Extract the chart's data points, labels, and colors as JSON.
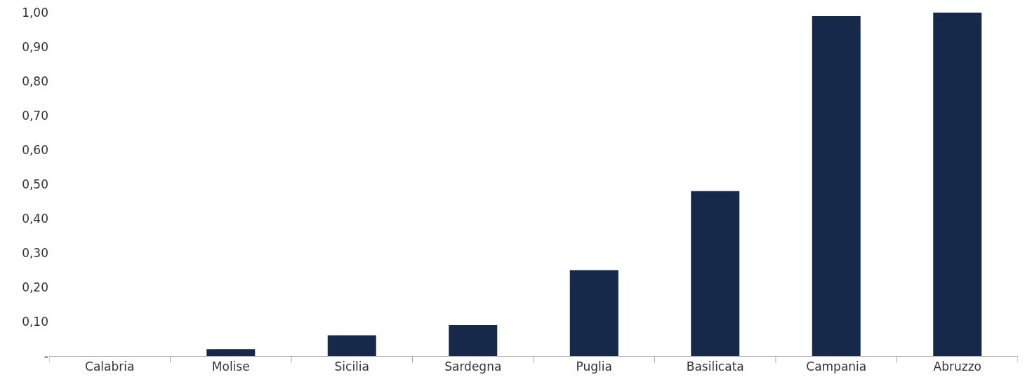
{
  "chart_data": {
    "type": "bar",
    "categories": [
      "Calabria",
      "Molise",
      "Sicilia",
      "Sardegna",
      "Puglia",
      "Basilicata",
      "Campania",
      "Abruzzo"
    ],
    "values": [
      0,
      0.02,
      0.06,
      0.09,
      0.25,
      0.48,
      0.99,
      1.0
    ],
    "color": "#17294a",
    "ylim": [
      0,
      1
    ],
    "yticks": [
      {
        "value": 0,
        "label": "-"
      },
      {
        "value": 0.1,
        "label": "0,10"
      },
      {
        "value": 0.2,
        "label": "0,20"
      },
      {
        "value": 0.3,
        "label": "0,30"
      },
      {
        "value": 0.4,
        "label": "0,40"
      },
      {
        "value": 0.5,
        "label": "0,50"
      },
      {
        "value": 0.6,
        "label": "0,60"
      },
      {
        "value": 0.7,
        "label": "0,70"
      },
      {
        "value": 0.8,
        "label": "0,80"
      },
      {
        "value": 0.9,
        "label": "0,90"
      },
      {
        "value": 1,
        "label": "1,00"
      }
    ],
    "grid": false,
    "legend": false
  }
}
